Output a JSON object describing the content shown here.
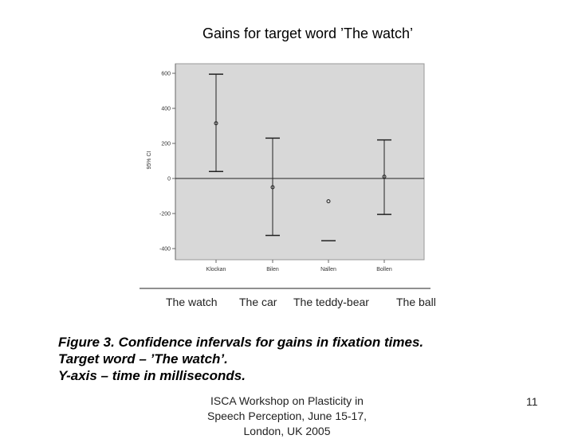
{
  "slide": {
    "title": "Gains for target word ’The watch’",
    "english_labels": [
      "The watch",
      "The car",
      "The teddy-bear",
      "The ball"
    ],
    "caption_lines": [
      "Figure 3. Confidence infervals for gains in fixation times.",
      "Target word – ’The watch’.",
      "Y-axis – time in milliseconds."
    ],
    "footer_lines": [
      "ISCA Workshop on Plasticity in",
      "Speech Perception, June 15-17,",
      "London, UK 2005"
    ],
    "page_number": "11"
  },
  "chart_data": {
    "type": "errorbar",
    "ylabel": "95% CI",
    "ylim": [
      -450,
      650
    ],
    "yticks": [
      600,
      400,
      200,
      0,
      -200,
      -400
    ],
    "ytick_labels": [
      "600",
      "400",
      "200",
      "0",
      "-200",
      "-400"
    ],
    "categories": [
      "Klockan",
      "Bilen",
      "Nallen",
      "Bollen"
    ],
    "points": [
      {
        "category": "Klockan",
        "mean": 315,
        "lower": 40,
        "upper": 595
      },
      {
        "category": "Bilen",
        "mean": -50,
        "lower": -325,
        "upper": 230
      },
      {
        "category": "Nallen",
        "mean": -130,
        "lower": -355,
        "upper": null
      },
      {
        "category": "Bollen",
        "mean": 10,
        "lower": -205,
        "upper": 220
      }
    ],
    "reference_line": 0,
    "grid": false,
    "colors": {
      "plot_bg": "#d8d8d8",
      "frame": "#999999",
      "mark": "#222222"
    }
  }
}
